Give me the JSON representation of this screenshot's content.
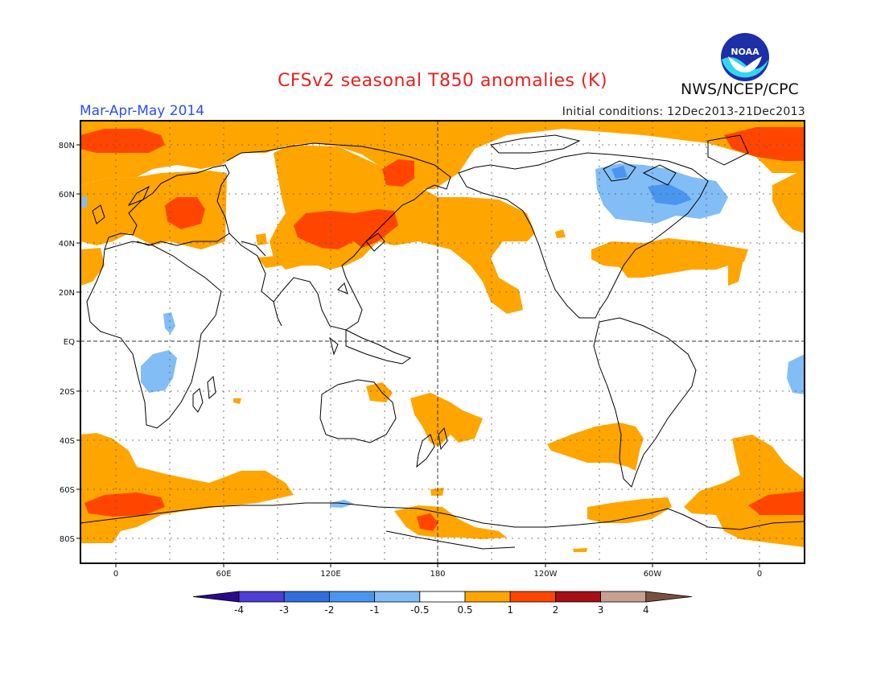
{
  "header": {
    "title": "CFSv2 seasonal T850 anomalies (K)",
    "period": "Mar-Apr-May 2014",
    "initial_conditions": "Initial conditions: 12Dec2013-21Dec2013",
    "agency": "NWS/NCEP/CPC",
    "logo_text": "NOAA"
  },
  "axes": {
    "lat_labels": [
      "80N",
      "60N",
      "40N",
      "20N",
      "EQ",
      "20S",
      "40S",
      "60S",
      "80S"
    ],
    "lon_labels": [
      "0",
      "60E",
      "120E",
      "180",
      "120W",
      "60W",
      "0"
    ]
  },
  "colorbar": {
    "labels": [
      "-4",
      "-3",
      "-2",
      "-1",
      "-0.5",
      "0.5",
      "1",
      "2",
      "3",
      "4"
    ],
    "colors": [
      "#2a0a8c",
      "#4b3fd4",
      "#2f6fde",
      "#4a96ee",
      "#82bdf6",
      "#ffffff",
      "#ffa500",
      "#ff4500",
      "#a50f15",
      "#c8a090",
      "#7a4f40"
    ]
  },
  "colors": {
    "warm_1": "#ffa500",
    "warm_2": "#ff4500",
    "cool_1": "#82bdf6",
    "cool_2": "#4a96ee",
    "title_red": "#e8211c",
    "period_blue": "#2b4ff0"
  }
}
